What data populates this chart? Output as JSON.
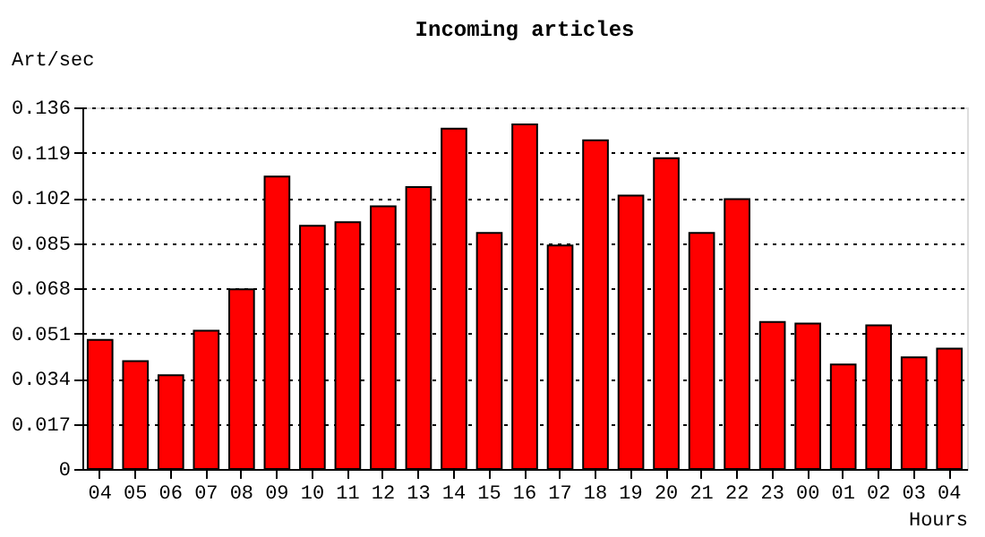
{
  "chart_data": {
    "type": "bar",
    "title": "Incoming articles",
    "xlabel": "Hours",
    "ylabel": "Art/sec",
    "categories": [
      "04",
      "05",
      "06",
      "07",
      "08",
      "09",
      "10",
      "11",
      "12",
      "13",
      "14",
      "15",
      "16",
      "17",
      "18",
      "19",
      "20",
      "21",
      "22",
      "23",
      "00",
      "01",
      "02",
      "03",
      "04"
    ],
    "values": [
      0.0486,
      0.0406,
      0.0353,
      0.052,
      0.0676,
      0.11,
      0.0915,
      0.0928,
      0.0988,
      0.106,
      0.128,
      0.0888,
      0.1296,
      0.0841,
      0.1236,
      0.1028,
      0.1169,
      0.0888,
      0.1015,
      0.0553,
      0.0547,
      0.0393,
      0.054,
      0.042,
      0.0453
    ],
    "color": "#ff0000",
    "ylim": [
      0,
      0.136
    ],
    "yticks": [
      0,
      0.017,
      0.034,
      0.051,
      0.068,
      0.085,
      0.102,
      0.119,
      0.136
    ],
    "grid": "y",
    "line_style": "dotted"
  }
}
